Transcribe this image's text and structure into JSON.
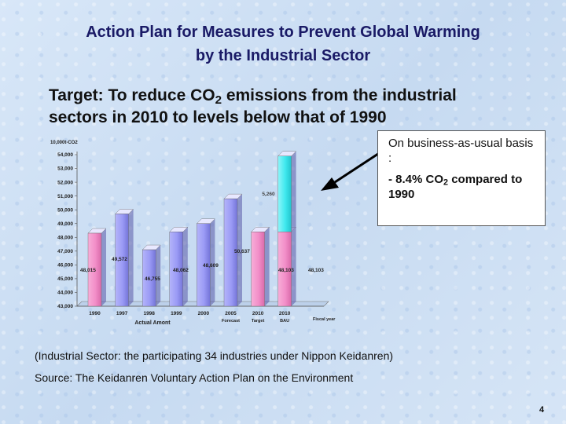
{
  "slide": {
    "title_line1": "Action Plan for Measures to Prevent Global Warming",
    "title_line2": "by the Industrial Sector",
    "target_pre": "Target: To reduce CO",
    "target_sub": "2",
    "target_post": " emissions from the industrial",
    "target_line2": "sectors in 2010 to levels below that of 1990",
    "callout_line1": "On business-as-usual basis :",
    "callout_pre": "- 8.4%  CO",
    "callout_sub": "2",
    "callout_post": " compared to 1990",
    "note1": "(Industrial Sector: the participating 34 industries under Nippon Keidanren)",
    "note2": "Source: The Keidanren Voluntary Action Plan on the Environment",
    "page_number": "4",
    "colors": {
      "title": "#1a1a66",
      "bar_pink": "#f28ec8",
      "bar_blue": "#9a9af5",
      "bar_cyan": "#3fe8ee"
    }
  },
  "chart_data": {
    "type": "bar",
    "ylabel": "10,000t-CO2",
    "ylim": [
      43000,
      54000
    ],
    "yticks": [
      "43,000",
      "44,000",
      "45,000",
      "46,000",
      "47,000",
      "48,000",
      "49,000",
      "50,000",
      "51,000",
      "52,000",
      "53,000",
      "54,000"
    ],
    "categories": [
      "1990",
      "1997",
      "1998",
      "1999",
      "2000",
      "2005",
      "2010",
      "2010"
    ],
    "category_sublabels": [
      "Actual Amont",
      "Forecast",
      "Target",
      "BAU"
    ],
    "extra_label": "Fiscal year",
    "values": [
      48300,
      49700,
      47100,
      48400,
      49000,
      50800,
      48400,
      48400
    ],
    "value_labels": [
      "48,015",
      "49,572",
      "46,755",
      "48,062",
      "48,609",
      "50,637",
      "48,103",
      "48,103"
    ],
    "bar_colors": [
      "pink",
      "blue",
      "blue",
      "blue",
      "blue",
      "blue",
      "pink",
      "pink"
    ],
    "stacked_extra": {
      "bar_index": 7,
      "top": 53900,
      "label": "5,260"
    }
  }
}
